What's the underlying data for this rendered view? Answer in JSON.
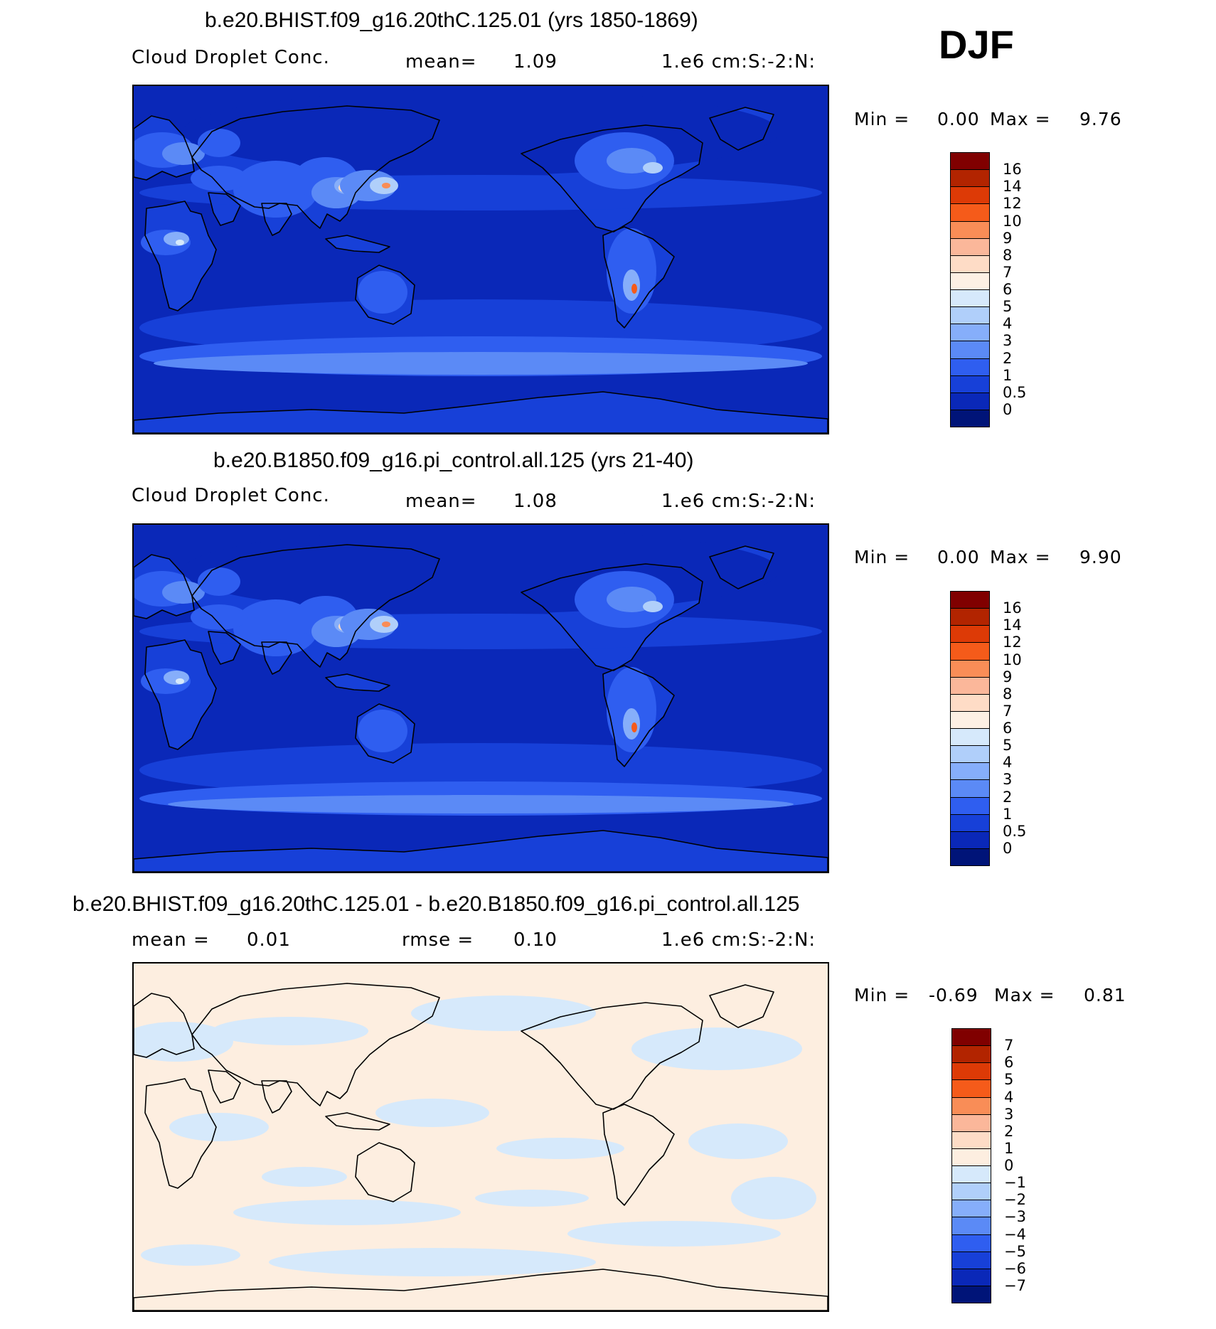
{
  "season": "DJF",
  "panels": [
    {
      "title": "b.e20.BHIST.f09_g16.20thC.125.01 (yrs 1850-1869)",
      "variable": "Cloud Droplet Conc.",
      "mean_label": "mean=",
      "mean_value": "1.09",
      "rmse_label": "",
      "rmse_value": "",
      "units": "1.e6 cm:S:-2:N:",
      "min_label": "Min =",
      "min_value": "0.00",
      "max_label": "Max =",
      "max_value": "9.76",
      "colorbar": {
        "levels": [
          "16",
          "14",
          "12",
          "10",
          "9",
          "8",
          "7",
          "6",
          "5",
          "4",
          "3",
          "2",
          "1",
          "0.5",
          "0"
        ],
        "colors": [
          "#800000",
          "#b22400",
          "#dd3a06",
          "#f55b1a",
          "#f98d57",
          "#fbb79a",
          "#fedcc6",
          "#fdf0e4",
          "#d6e9fb",
          "#b0cffa",
          "#86aefa",
          "#5b8af6",
          "#2f5ef0",
          "#1740d8",
          "#0a28b8",
          "#001478"
        ]
      }
    },
    {
      "title": "b.e20.B1850.f09_g16.pi_control.all.125 (yrs 21-40)",
      "variable": "Cloud Droplet Conc.",
      "mean_label": "mean=",
      "mean_value": "1.08",
      "rmse_label": "",
      "rmse_value": "",
      "units": "1.e6 cm:S:-2:N:",
      "min_label": "Min =",
      "min_value": "0.00",
      "max_label": "Max =",
      "max_value": "9.90",
      "colorbar": {
        "levels": [
          "16",
          "14",
          "12",
          "10",
          "9",
          "8",
          "7",
          "6",
          "5",
          "4",
          "3",
          "2",
          "1",
          "0.5",
          "0"
        ],
        "colors": [
          "#800000",
          "#b22400",
          "#dd3a06",
          "#f55b1a",
          "#f98d57",
          "#fbb79a",
          "#fedcc6",
          "#fdf0e4",
          "#d6e9fb",
          "#b0cffa",
          "#86aefa",
          "#5b8af6",
          "#2f5ef0",
          "#1740d8",
          "#0a28b8",
          "#001478"
        ]
      }
    },
    {
      "title": "b.e20.BHIST.f09_g16.20thC.125.01 - b.e20.B1850.f09_g16.pi_control.all.125",
      "variable": "",
      "mean_label": "mean =",
      "mean_value": "0.01",
      "rmse_label": "rmse =",
      "rmse_value": "0.10",
      "units": "1.e6 cm:S:-2:N:",
      "min_label": "Min =",
      "min_value": "-0.69",
      "max_label": "Max =",
      "max_value": "0.81",
      "colorbar": {
        "levels": [
          "7",
          "6",
          "5",
          "4",
          "3",
          "2",
          "1",
          "0",
          "-1",
          "-2",
          "-3",
          "-4",
          "-5",
          "-6",
          "-7"
        ],
        "colors": [
          "#800000",
          "#b22400",
          "#dd3a06",
          "#f55b1a",
          "#f98d57",
          "#fbb79a",
          "#fedcc6",
          "#fdeee0",
          "#d6e9fb",
          "#b0cffa",
          "#86aefa",
          "#5b8af6",
          "#2f5ef0",
          "#1740d8",
          "#0a28b8",
          "#001478"
        ]
      }
    }
  ]
}
